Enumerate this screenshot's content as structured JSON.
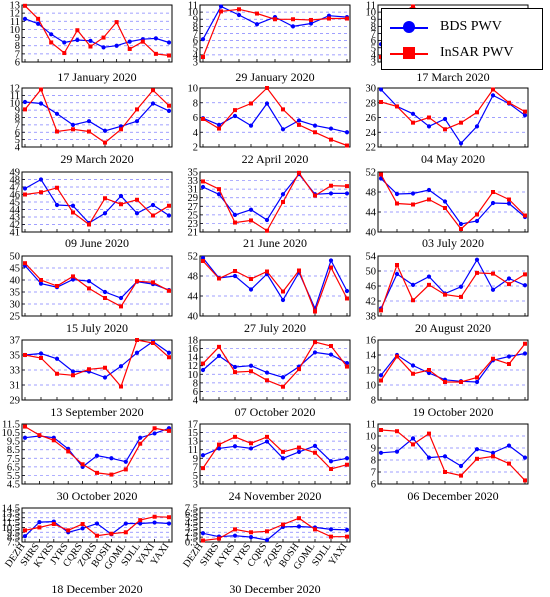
{
  "legend": {
    "bds_label": "BDS PWV",
    "insar_label": "InSAR PWV",
    "bds_color": "#0000ff",
    "insar_color": "#ff0000"
  },
  "chart_data": [
    {
      "type": "line",
      "title": "17 January 2020",
      "ylim": [
        6,
        13
      ],
      "yticks": [
        6,
        7,
        8,
        9,
        10,
        11,
        12,
        13
      ],
      "series": [
        {
          "name": "BDS PWV",
          "values": [
            11.3,
            10.7,
            9.4,
            8.4,
            8.7,
            8.6,
            7.8,
            8.0,
            8.5,
            8.8,
            8.9,
            8.4
          ]
        },
        {
          "name": "InSAR PWV",
          "values": [
            12.9,
            11.3,
            8.4,
            7.1,
            9.9,
            7.9,
            9.0,
            10.9,
            7.6,
            8.5,
            7.0,
            6.8
          ]
        }
      ]
    },
    {
      "type": "line",
      "title": "29 January 2020",
      "ylim": [
        3,
        11
      ],
      "yticks": [
        3,
        4,
        5,
        6,
        7,
        8,
        9,
        10,
        11
      ],
      "series": [
        {
          "name": "BDS PWV",
          "values": [
            6.2,
            10.8,
            9.6,
            8.3,
            9.3,
            8.0,
            8.4,
            9.5,
            9.3
          ]
        },
        {
          "name": "InSAR PWV",
          "values": [
            3.7,
            10.1,
            10.4,
            9.8,
            9.0,
            9.0,
            8.9,
            9.1,
            9.1
          ]
        }
      ]
    },
    {
      "type": "line",
      "title": "17 March 2020",
      "ylim": [
        3,
        11
      ],
      "yticks": [
        3,
        4,
        5,
        6,
        7,
        8,
        9,
        10,
        11
      ],
      "series": [
        {
          "name": "BDS PWV",
          "values": [
            5.5,
            7.5,
            6.5,
            4.8,
            5.0,
            3.8,
            5.5,
            6.5,
            9.3,
            8.5
          ]
        },
        {
          "name": "InSAR PWV",
          "values": [
            3.7,
            9.5,
            10.8,
            9.0,
            9.0,
            8.4,
            9.0,
            9.5,
            7.0,
            8.8
          ]
        }
      ]
    },
    {
      "type": "line",
      "title": "29 March 2020",
      "ylim": [
        4,
        12
      ],
      "yticks": [
        4,
        5,
        6,
        7,
        8,
        9,
        10,
        11,
        12
      ],
      "series": [
        {
          "name": "BDS PWV",
          "values": [
            10.1,
            9.9,
            8.5,
            7.0,
            7.5,
            6.2,
            6.8,
            7.5,
            9.9,
            8.9
          ]
        },
        {
          "name": "InSAR PWV",
          "values": [
            9.1,
            11.8,
            6.1,
            6.4,
            6.1,
            4.6,
            6.4,
            9.1,
            11.7,
            9.6
          ]
        }
      ]
    },
    {
      "type": "line",
      "title": "22 April 2020",
      "ylim": [
        2,
        10
      ],
      "yticks": [
        2,
        4,
        6,
        8,
        10
      ],
      "series": [
        {
          "name": "BDS PWV",
          "values": [
            5.9,
            5.0,
            6.2,
            4.9,
            7.9,
            4.4,
            5.6,
            4.9,
            4.5,
            4.0
          ]
        },
        {
          "name": "InSAR PWV",
          "values": [
            5.8,
            4.5,
            7.0,
            7.9,
            10.0,
            7.1,
            5.0,
            4.0,
            3.0,
            2.2
          ]
        }
      ]
    },
    {
      "type": "line",
      "title": "04 May 2020",
      "ylim": [
        22,
        30
      ],
      "yticks": [
        22,
        24,
        26,
        28,
        30
      ],
      "series": [
        {
          "name": "BDS PWV",
          "values": [
            29.8,
            27.5,
            26.5,
            24.8,
            25.8,
            22.5,
            24.8,
            29.0,
            27.9,
            26.3
          ]
        },
        {
          "name": "InSAR PWV",
          "values": [
            28.1,
            27.5,
            25.3,
            26.0,
            24.4,
            25.3,
            26.7,
            29.8,
            28.0,
            26.8
          ]
        }
      ]
    },
    {
      "type": "line",
      "title": "09 June 2020",
      "ylim": [
        41,
        49
      ],
      "yticks": [
        41,
        42,
        43,
        44,
        45,
        46,
        47,
        48,
        49
      ],
      "series": [
        {
          "name": "BDS PWV",
          "values": [
            46.8,
            48.0,
            44.6,
            44.5,
            42.2,
            43.5,
            45.8,
            43.5,
            44.6,
            43.2
          ]
        },
        {
          "name": "InSAR PWV",
          "values": [
            46.0,
            46.3,
            46.9,
            43.6,
            42.0,
            45.5,
            44.7,
            45.3,
            43.2,
            44.5
          ]
        }
      ]
    },
    {
      "type": "line",
      "title": "21 June 2020",
      "ylim": [
        21,
        35
      ],
      "yticks": [
        21,
        23,
        25,
        27,
        29,
        31,
        33,
        35
      ],
      "series": [
        {
          "name": "BDS PWV",
          "values": [
            31.5,
            29.8,
            25.0,
            26.2,
            23.8,
            29.8,
            34.5,
            29.8,
            30.0,
            30.0
          ]
        },
        {
          "name": "InSAR PWV",
          "values": [
            32.8,
            31.0,
            23.2,
            23.7,
            21.3,
            28.0,
            34.8,
            29.5,
            31.8,
            31.7
          ]
        }
      ]
    },
    {
      "type": "line",
      "title": "03 July 2020",
      "ylim": [
        40,
        52
      ],
      "yticks": [
        40,
        44,
        48,
        52
      ],
      "series": [
        {
          "name": "BDS PWV",
          "values": [
            50.7,
            47.6,
            47.7,
            48.4,
            46.1,
            41.6,
            42.2,
            45.8,
            45.7,
            43.0
          ]
        },
        {
          "name": "InSAR PWV",
          "values": [
            51.5,
            45.7,
            45.5,
            46.5,
            44.8,
            40.6,
            43.5,
            48.0,
            46.5,
            43.3
          ]
        }
      ]
    },
    {
      "type": "line",
      "title": "15 July 2020",
      "ylim": [
        25,
        50
      ],
      "yticks": [
        25,
        30,
        35,
        40,
        45,
        50
      ],
      "series": [
        {
          "name": "BDS PWV",
          "values": [
            46.0,
            38.5,
            37.0,
            40.2,
            39.5,
            35.0,
            32.5,
            39.3,
            38.3,
            35.8
          ]
        },
        {
          "name": "InSAR PWV",
          "values": [
            47.0,
            40.0,
            37.5,
            41.5,
            36.5,
            32.5,
            29.0,
            39.5,
            39.0,
            35.5
          ]
        }
      ]
    },
    {
      "type": "line",
      "title": "27 July 2020",
      "ylim": [
        40,
        52
      ],
      "yticks": [
        40,
        44,
        48,
        52
      ],
      "series": [
        {
          "name": "BDS PWV",
          "values": [
            51.6,
            47.6,
            48.0,
            45.3,
            48.4,
            43.2,
            48.7,
            41.5,
            51.1,
            45.0
          ]
        },
        {
          "name": "InSAR PWV",
          "values": [
            51.0,
            47.5,
            49.0,
            47.4,
            48.9,
            44.9,
            49.1,
            40.9,
            49.7,
            43.5
          ]
        }
      ]
    },
    {
      "type": "line",
      "title": "20 August 2020",
      "ylim": [
        38,
        54
      ],
      "yticks": [
        38,
        42,
        46,
        50,
        54
      ],
      "series": [
        {
          "name": "BDS PWV",
          "values": [
            40.0,
            49.2,
            46.3,
            48.5,
            44.0,
            45.8,
            53.0,
            45.0,
            48.0,
            46.2
          ]
        },
        {
          "name": "InSAR PWV",
          "values": [
            39.5,
            51.6,
            42.2,
            46.3,
            43.7,
            43.1,
            49.5,
            49.3,
            46.5,
            49.1
          ]
        }
      ]
    },
    {
      "type": "line",
      "title": "13 September 2020",
      "ylim": [
        29,
        37
      ],
      "yticks": [
        29,
        31,
        33,
        35,
        37
      ],
      "series": [
        {
          "name": "BDS PWV",
          "values": [
            35.0,
            35.2,
            34.5,
            32.8,
            32.8,
            32.0,
            33.5,
            35.3,
            36.8,
            35.3
          ]
        },
        {
          "name": "InSAR PWV",
          "values": [
            35.0,
            34.6,
            32.5,
            32.3,
            33.1,
            33.3,
            30.8,
            37.0,
            36.6,
            34.7
          ]
        }
      ]
    },
    {
      "type": "line",
      "title": "07 October 2020",
      "ylim": [
        4,
        18
      ],
      "yticks": [
        4,
        6,
        8,
        10,
        12,
        14,
        16,
        18
      ],
      "series": [
        {
          "name": "BDS PWV",
          "values": [
            11.0,
            14.3,
            11.7,
            12.0,
            10.4,
            9.3,
            11.8,
            15.1,
            14.6,
            12.6
          ]
        },
        {
          "name": "InSAR PWV",
          "values": [
            12.5,
            16.4,
            10.5,
            10.7,
            8.6,
            7.1,
            11.2,
            17.5,
            16.6,
            11.8
          ]
        }
      ]
    },
    {
      "type": "line",
      "title": "19 October 2020",
      "ylim": [
        8,
        16
      ],
      "yticks": [
        8,
        10,
        12,
        14,
        16
      ],
      "series": [
        {
          "name": "BDS PWV",
          "values": [
            11.3,
            14.0,
            12.6,
            11.6,
            10.7,
            10.5,
            10.4,
            13.3,
            13.8,
            14.2
          ]
        },
        {
          "name": "InSAR PWV",
          "values": [
            10.6,
            13.8,
            11.5,
            12.0,
            10.4,
            10.4,
            11.0,
            13.5,
            12.8,
            15.5
          ]
        }
      ]
    },
    {
      "type": "line",
      "title": "30 October 2020",
      "ylim": [
        4.5,
        11.5
      ],
      "yticks": [
        4.5,
        5.5,
        6.5,
        7.5,
        8.5,
        9.5,
        10.5,
        11.5
      ],
      "series": [
        {
          "name": "BDS PWV",
          "values": [
            9.9,
            10.1,
            9.9,
            8.6,
            6.5,
            7.8,
            7.5,
            7.1,
            9.9,
            10.4,
            11.0
          ]
        },
        {
          "name": "InSAR PWV",
          "values": [
            11.2,
            10.2,
            9.6,
            8.3,
            6.8,
            5.8,
            5.6,
            6.2,
            9.2,
            11.0,
            10.7
          ]
        }
      ]
    },
    {
      "type": "line",
      "title": "24 November 2020",
      "ylim": [
        3,
        17
      ],
      "yticks": [
        3,
        5,
        7,
        9,
        11,
        13,
        15,
        17
      ],
      "series": [
        {
          "name": "BDS PWV",
          "values": [
            9.7,
            11.3,
            11.8,
            11.3,
            12.9,
            9.0,
            10.5,
            11.9,
            8.3,
            9.0
          ]
        },
        {
          "name": "InSAR PWV",
          "values": [
            6.7,
            12.2,
            14.0,
            12.5,
            14.0,
            10.5,
            11.5,
            10.3,
            6.5,
            7.5
          ]
        }
      ]
    },
    {
      "type": "line",
      "title": "06 December 2020",
      "ylim": [
        6,
        11
      ],
      "yticks": [
        6,
        7,
        8,
        9,
        10,
        11
      ],
      "series": [
        {
          "name": "BDS PWV",
          "values": [
            8.6,
            8.7,
            9.8,
            8.2,
            8.3,
            7.5,
            8.9,
            8.6,
            9.2,
            8.2
          ]
        },
        {
          "name": "InSAR PWV",
          "values": [
            10.5,
            10.4,
            9.3,
            10.2,
            7.0,
            6.7,
            8.1,
            8.3,
            7.7,
            6.3
          ]
        }
      ]
    },
    {
      "type": "line",
      "title": "18 December 2020",
      "ylim": [
        7.5,
        14.5
      ],
      "yticks": [
        7.5,
        8.5,
        9.5,
        10.5,
        11.5,
        12.5,
        13.5,
        14.5
      ],
      "series": [
        {
          "name": "BDS PWV",
          "values": [
            8.7,
            11.6,
            11.7,
            9.5,
            10.3,
            11.3,
            9.1,
            11.3,
            11.3,
            11.5,
            11.3
          ]
        },
        {
          "name": "InSAR PWV",
          "values": [
            9.9,
            10.5,
            11.2,
            9.9,
            11.2,
            8.8,
            9.2,
            9.5,
            12.0,
            12.7,
            12.6
          ]
        }
      ]
    },
    {
      "type": "line",
      "title": "30 December 2020",
      "ylim": [
        0.5,
        7.5
      ],
      "yticks": [
        0.5,
        1.5,
        2.5,
        3.5,
        4.5,
        5.5,
        6.5,
        7.5
      ],
      "series": [
        {
          "name": "BDS PWV",
          "values": [
            2.3,
            1.6,
            1.8,
            1.5,
            0.9,
            3.6,
            3.7,
            3.5,
            3.1,
            3.0
          ]
        },
        {
          "name": "InSAR PWV",
          "values": [
            0.8,
            1.2,
            3.1,
            2.5,
            2.7,
            4.1,
            5.4,
            3.1,
            1.6,
            1.6
          ]
        }
      ]
    }
  ],
  "x_tick_labels": {
    "ten": [
      "DEZH",
      "SHRS",
      "KYRS",
      "JYRS",
      "CQRS",
      "ZQRS",
      "BOSH",
      "GOML",
      "SDLL",
      "YAXI"
    ],
    "eleven": [
      "DEZH",
      "SHRS",
      "KYRS",
      "JYRS",
      "CQRS",
      "ZQRS",
      "BOSH",
      "GOML",
      "SDLL",
      "YAXI",
      "YAXI"
    ]
  }
}
